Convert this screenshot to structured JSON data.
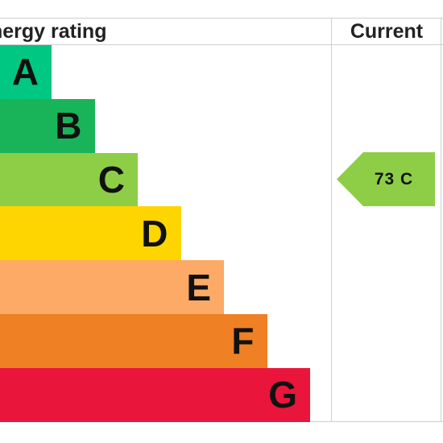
{
  "header": {
    "rating_title": "nergy rating",
    "current_title": "Current"
  },
  "chart_data": {
    "type": "bar",
    "categories": [
      "A",
      "B",
      "C",
      "D",
      "E",
      "F",
      "G"
    ],
    "colors": [
      "#00c781",
      "#19b459",
      "#8dce46",
      "#ffd500",
      "#fcaa65",
      "#ef8023",
      "#e9153b"
    ],
    "current": {
      "value": 73,
      "band": "C",
      "label": "73  C",
      "color": "#8dce46"
    }
  }
}
